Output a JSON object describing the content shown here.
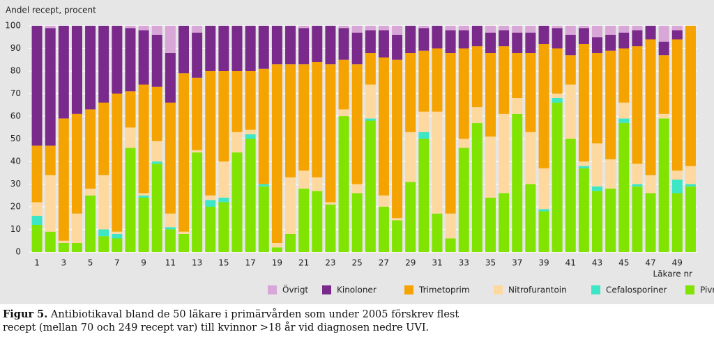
{
  "chart_data": {
    "type": "stacked-bar",
    "y_axis_label": "Andel recept, procent",
    "x_axis_label": "Läkare nr",
    "categories": [
      "1",
      null,
      "3",
      null,
      "5",
      null,
      "7",
      null,
      "9",
      null,
      "11",
      null,
      "13",
      null,
      "15",
      null,
      "17",
      null,
      "19",
      null,
      "21",
      null,
      "23",
      null,
      "25",
      null,
      "27",
      null,
      "29",
      null,
      "31",
      null,
      "33",
      null,
      "35",
      null,
      "37",
      null,
      "39",
      null,
      "41",
      null,
      "43",
      null,
      "45",
      null,
      "47",
      null,
      "49",
      null
    ],
    "ylim": [
      0,
      100
    ],
    "yticks": [
      0,
      10,
      20,
      30,
      40,
      50,
      60,
      70,
      80,
      90,
      100
    ],
    "grid": true,
    "series": [
      {
        "name": "Pivmecillinam",
        "color": "#80e400",
        "values": [
          12,
          9,
          4,
          4,
          25,
          7,
          6,
          46,
          24,
          39,
          10,
          8,
          44,
          20,
          22,
          44,
          50,
          29,
          2,
          8,
          28,
          27,
          21,
          60,
          26,
          58,
          20,
          14,
          31,
          50,
          17,
          6,
          46,
          57,
          24,
          26,
          61,
          30,
          18,
          66,
          50,
          37,
          27,
          28,
          57,
          29,
          26,
          59,
          26,
          29
        ]
      },
      {
        "name": "Cefalosporiner",
        "color": "#3de6c4",
        "values": [
          4,
          0,
          0,
          0,
          0,
          3,
          2,
          0,
          1,
          1,
          1,
          0,
          0,
          3,
          2,
          0,
          2,
          1,
          0,
          0,
          0,
          0,
          0,
          0,
          0,
          1,
          0,
          0,
          0,
          3,
          0,
          0,
          0,
          0,
          0,
          0,
          0,
          0,
          1,
          2,
          0,
          1,
          2,
          0,
          2,
          1,
          0,
          0,
          6,
          1
        ]
      },
      {
        "name": "Nitrofurantoin",
        "color": "#fdd9a0",
        "values": [
          6,
          25,
          1,
          13,
          3,
          24,
          1,
          9,
          1,
          9,
          6,
          1,
          1,
          2,
          16,
          9,
          2,
          0,
          2,
          25,
          8,
          6,
          1,
          3,
          4,
          15,
          5,
          1,
          22,
          9,
          45,
          11,
          4,
          7,
          27,
          35,
          7,
          23,
          18,
          2,
          24,
          2,
          19,
          13,
          7,
          9,
          8,
          2,
          4,
          8
        ]
      },
      {
        "name": "Trimetoprim",
        "color": "#f5a300",
        "values": [
          25,
          13,
          54,
          44,
          35,
          32,
          61,
          16,
          48,
          24,
          49,
          70,
          32,
          55,
          40,
          27,
          26,
          51,
          79,
          50,
          47,
          51,
          61,
          22,
          53,
          14,
          61,
          70,
          35,
          27,
          28,
          71,
          40,
          27,
          37,
          30,
          20,
          35,
          55,
          20,
          13,
          52,
          40,
          48,
          24,
          52,
          60,
          26,
          58,
          62
        ]
      },
      {
        "name": "Kinoloner",
        "color": "#7a2a8a",
        "values": [
          53,
          52,
          41,
          39,
          37,
          34,
          30,
          28,
          24,
          23,
          22,
          21,
          20,
          20,
          20,
          20,
          20,
          19,
          17,
          17,
          16,
          16,
          17,
          14,
          14,
          10,
          12,
          11,
          12,
          10,
          10,
          10,
          8,
          9,
          9,
          7,
          9,
          9,
          8,
          9,
          9,
          7,
          7,
          7,
          7,
          7,
          6,
          6,
          4,
          0
        ]
      },
      {
        "name": "Övrigt",
        "color": "#d9a6d8",
        "values": [
          0,
          1,
          0,
          0,
          0,
          0,
          0,
          1,
          2,
          4,
          12,
          0,
          3,
          0,
          0,
          0,
          0,
          0,
          0,
          0,
          1,
          0,
          0,
          1,
          3,
          2,
          2,
          4,
          0,
          1,
          0,
          2,
          2,
          0,
          3,
          2,
          3,
          3,
          0,
          1,
          4,
          1,
          5,
          4,
          3,
          2,
          0,
          7,
          2,
          0
        ]
      }
    ]
  },
  "caption": {
    "label": "Figur 5.",
    "lines": [
      "Antibiotikaval bland de 50 läkare i primärvården som under 2005 förskrev flest",
      "recept (mellan 70 och 249 recept var) till kvinnor >18 år vid diagnosen nedre UVI."
    ]
  }
}
